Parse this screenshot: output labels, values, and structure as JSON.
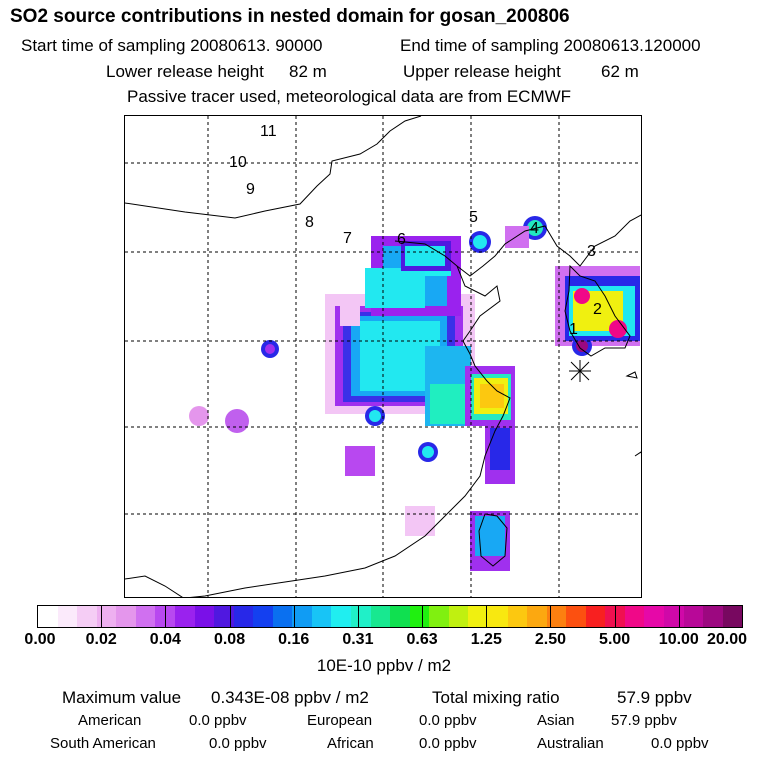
{
  "header": {
    "title": "SO2 source contributions in nested domain for gosan_200806",
    "start_label": "Start time of sampling 20080613. 90000",
    "end_label": "End time of sampling 20080613.120000",
    "lower_label": "Lower release height",
    "lower_value": "82 m",
    "upper_label": "Upper release height",
    "upper_value": "62 m",
    "note": "Passive tracer used, meteorological data are from ECMWF"
  },
  "map": {
    "region_labels": [
      "1",
      "2",
      "3",
      "4",
      "5",
      "6",
      "7",
      "8",
      "9",
      "10",
      "11"
    ]
  },
  "legend": {
    "ticks": [
      "0.00",
      "0.02",
      "0.04",
      "0.08",
      "0.16",
      "0.31",
      "0.63",
      "1.25",
      "2.50",
      "5.00",
      "10.00",
      "20.00"
    ],
    "colors": [
      "#ffffff",
      "#fbeafb",
      "#f5cdf5",
      "#eeb0f0",
      "#e496ec",
      "#d070f0",
      "#b848f0",
      "#9a22ee",
      "#7a10e8",
      "#5018e0",
      "#2828e8",
      "#1440f0",
      "#0a70f0",
      "#109cf4",
      "#18c4f6",
      "#20eef0",
      "#20f0c8",
      "#18e890",
      "#10e050",
      "#20f010",
      "#80f010",
      "#c0f010",
      "#f0f010",
      "#f8e810",
      "#fcc810",
      "#fca810",
      "#fc8010",
      "#fc5010",
      "#f82020",
      "#f01050",
      "#f00888",
      "#e608a8",
      "#d008a8",
      "#b80898",
      "#9c0880",
      "#780860"
    ],
    "unit": "10E-10 ppbv / m2"
  },
  "stats": {
    "max_label": "Maximum value",
    "max_value": "0.343E-08 ppbv / m2",
    "total_label": "Total mixing ratio",
    "total_value": "57.9 ppbv",
    "american_label": "American",
    "american_value": "0.0 ppbv",
    "european_label": "European",
    "european_value": "0.0 ppbv",
    "asian_label": "Asian",
    "asian_value": "57.9 ppbv",
    "south_american_label": "South American",
    "south_american_value": "0.0 ppbv",
    "african_label": "African",
    "african_value": "0.0 ppbv",
    "australian_label": "Australian",
    "australian_value": "0.0 ppbv"
  }
}
